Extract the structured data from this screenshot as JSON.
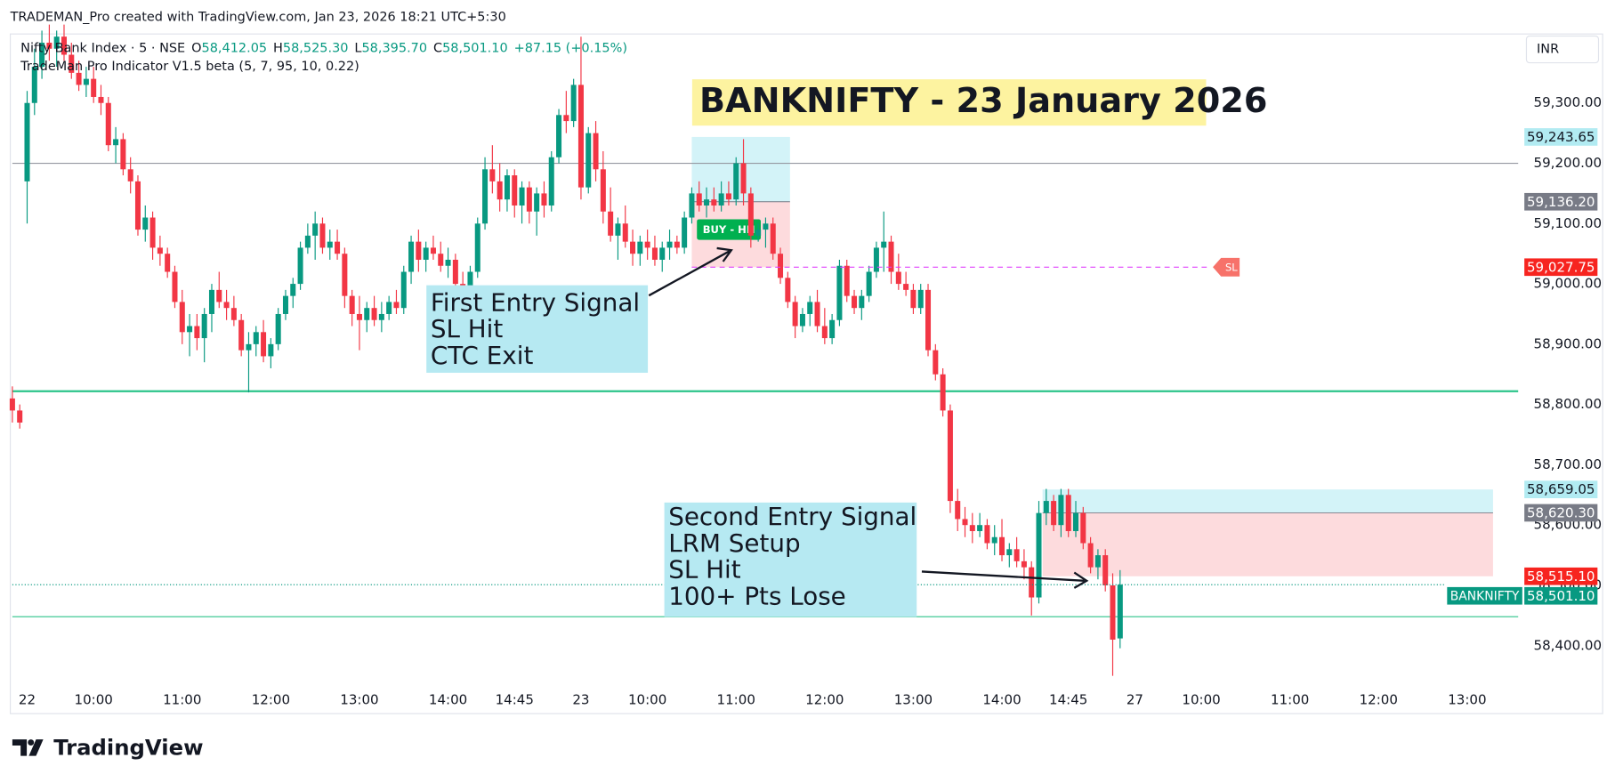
{
  "header": "TRADEMAN_Pro created with TradingView.com, Jan 23, 2026 18:21 UTC+5:30",
  "brand": "TradingView",
  "chart_data": {
    "type": "candlestick",
    "title": "BANKNIFTY - 23 January 2026",
    "currency": "INR",
    "legend": {
      "symbol": "Nifty Bank Index · 5 · NSE",
      "ohlc": [
        {
          "key": "O",
          "value": "58,412.05"
        },
        {
          "key": "H",
          "value": "58,525.30"
        },
        {
          "key": "L",
          "value": "58,395.70"
        },
        {
          "key": "C",
          "value": "58,501.10"
        }
      ],
      "change": "+87.15 (+0.15%)",
      "indicator": "TradeMan Pro Indicator V1.5 beta (5, 7, 95, 10, 0.22)"
    },
    "up_color": "#089981",
    "down_color": "#f23645",
    "xlim": [
      0,
      200
    ],
    "ylim": [
      58330,
      59411
    ],
    "grid": false,
    "xticks": [
      {
        "value": 2,
        "label": "22"
      },
      {
        "value": 11,
        "label": "10:00"
      },
      {
        "value": 23,
        "label": "11:00"
      },
      {
        "value": 35,
        "label": "12:00"
      },
      {
        "value": 47,
        "label": "13:00"
      },
      {
        "value": 59,
        "label": "14:00"
      },
      {
        "value": 68,
        "label": "14:45"
      },
      {
        "value": 77,
        "label": "23"
      },
      {
        "value": 86,
        "label": "10:00"
      },
      {
        "value": 98,
        "label": "11:00"
      },
      {
        "value": 110,
        "label": "12:00"
      },
      {
        "value": 122,
        "label": "13:00"
      },
      {
        "value": 134,
        "label": "14:00"
      },
      {
        "value": 143,
        "label": "14:45"
      },
      {
        "value": 152,
        "label": "27"
      },
      {
        "value": 161,
        "label": "10:00"
      },
      {
        "value": 173,
        "label": "11:00"
      },
      {
        "value": 185,
        "label": "12:00"
      },
      {
        "value": 197,
        "label": "13:00"
      }
    ],
    "yticks": [
      {
        "value": 58400,
        "label": "58,400.00"
      },
      {
        "value": 58500,
        "label": "58,500.00"
      },
      {
        "value": 58600,
        "label": "58,600.00"
      },
      {
        "value": 58700,
        "label": "58,700.00"
      },
      {
        "value": 58800,
        "label": "58,800.00"
      },
      {
        "value": 58900,
        "label": "58,900.00"
      },
      {
        "value": 59000,
        "label": "59,000.00"
      },
      {
        "value": 59100,
        "label": "59,100.00"
      },
      {
        "value": 59200,
        "label": "59,200.00"
      },
      {
        "value": 59300,
        "label": "59,300.00"
      }
    ],
    "ohlc": [
      [
        58810,
        58830,
        58770,
        58790
      ],
      [
        58790,
        58800,
        58760,
        58770
      ],
      [
        59170,
        59320,
        59100,
        59300
      ],
      [
        59300,
        59390,
        59280,
        59360
      ],
      [
        59360,
        59420,
        59340,
        59400
      ],
      [
        59400,
        59430,
        59370,
        59390
      ],
      [
        59390,
        59420,
        59360,
        59410
      ],
      [
        59410,
        59430,
        59370,
        59380
      ],
      [
        59380,
        59400,
        59340,
        59350
      ],
      [
        59350,
        59370,
        59320,
        59330
      ],
      [
        59330,
        59360,
        59310,
        59340
      ],
      [
        59340,
        59360,
        59300,
        59310
      ],
      [
        59310,
        59330,
        59280,
        59300
      ],
      [
        59300,
        59310,
        59220,
        59230
      ],
      [
        59230,
        59260,
        59200,
        59240
      ],
      [
        59240,
        59250,
        59180,
        59190
      ],
      [
        59190,
        59210,
        59150,
        59170
      ],
      [
        59170,
        59180,
        59080,
        59090
      ],
      [
        59090,
        59130,
        59070,
        59110
      ],
      [
        59110,
        59120,
        59040,
        59060
      ],
      [
        59060,
        59080,
        59030,
        59050
      ],
      [
        59050,
        59060,
        59010,
        59020
      ],
      [
        59020,
        59030,
        58960,
        58970
      ],
      [
        58970,
        58990,
        58900,
        58920
      ],
      [
        58920,
        58950,
        58880,
        58930
      ],
      [
        58930,
        58950,
        58890,
        58910
      ],
      [
        58910,
        58960,
        58870,
        58950
      ],
      [
        58950,
        59000,
        58920,
        58990
      ],
      [
        58990,
        59020,
        58960,
        58970
      ],
      [
        58970,
        58990,
        58940,
        58960
      ],
      [
        58960,
        58980,
        58930,
        58940
      ],
      [
        58940,
        58950,
        58880,
        58890
      ],
      [
        58890,
        58920,
        58820,
        58900
      ],
      [
        58900,
        58930,
        58880,
        58920
      ],
      [
        58920,
        58940,
        58870,
        58880
      ],
      [
        58880,
        58910,
        58860,
        58900
      ],
      [
        58900,
        58960,
        58890,
        58950
      ],
      [
        58950,
        58990,
        58940,
        58980
      ],
      [
        58980,
        59010,
        58960,
        59000
      ],
      [
        59000,
        59070,
        58990,
        59060
      ],
      [
        59060,
        59100,
        59050,
        59080
      ],
      [
        59080,
        59120,
        59040,
        59100
      ],
      [
        59100,
        59110,
        59050,
        59060
      ],
      [
        59060,
        59090,
        59040,
        59070
      ],
      [
        59070,
        59090,
        59040,
        59050
      ],
      [
        59050,
        59060,
        58960,
        58980
      ],
      [
        58980,
        58990,
        58930,
        58950
      ],
      [
        58950,
        58980,
        58890,
        58940
      ],
      [
        58940,
        58970,
        58920,
        58960
      ],
      [
        58960,
        58980,
        58930,
        58940
      ],
      [
        58940,
        58970,
        58920,
        58950
      ],
      [
        58950,
        58980,
        58940,
        58970
      ],
      [
        58970,
        58990,
        58950,
        58960
      ],
      [
        58960,
        59030,
        58950,
        59020
      ],
      [
        59020,
        59080,
        59000,
        59070
      ],
      [
        59070,
        59090,
        59020,
        59040
      ],
      [
        59040,
        59070,
        59020,
        59060
      ],
      [
        59060,
        59080,
        59040,
        59050
      ],
      [
        59050,
        59070,
        59020,
        59030
      ],
      [
        59030,
        59060,
        59010,
        59040
      ],
      [
        59040,
        59050,
        58990,
        59000
      ],
      [
        59000,
        59020,
        58970,
        58990
      ],
      [
        58990,
        59030,
        58980,
        59020
      ],
      [
        59020,
        59110,
        59010,
        59100
      ],
      [
        59100,
        59210,
        59090,
        59190
      ],
      [
        59190,
        59230,
        59150,
        59170
      ],
      [
        59170,
        59200,
        59120,
        59140
      ],
      [
        59140,
        59190,
        59120,
        59180
      ],
      [
        59180,
        59190,
        59110,
        59130
      ],
      [
        59130,
        59170,
        59100,
        59160
      ],
      [
        59160,
        59170,
        59100,
        59120
      ],
      [
        59120,
        59160,
        59080,
        59150
      ],
      [
        59150,
        59170,
        59110,
        59130
      ],
      [
        59130,
        59220,
        59120,
        59210
      ],
      [
        59210,
        59290,
        59200,
        59280
      ],
      [
        59280,
        59320,
        59250,
        59270
      ],
      [
        59270,
        59340,
        59260,
        59330
      ],
      [
        59330,
        59410,
        59140,
        59160
      ],
      [
        59160,
        59260,
        59150,
        59250
      ],
      [
        59250,
        59270,
        59170,
        59190
      ],
      [
        59190,
        59220,
        59100,
        59120
      ],
      [
        59120,
        59160,
        59070,
        59080
      ],
      [
        59080,
        59110,
        59040,
        59100
      ],
      [
        59100,
        59130,
        59060,
        59070
      ],
      [
        59070,
        59090,
        59030,
        59050
      ],
      [
        59050,
        59080,
        59030,
        59070
      ],
      [
        59070,
        59090,
        59040,
        59060
      ],
      [
        59060,
        59080,
        59030,
        59040
      ],
      [
        59040,
        59070,
        59020,
        59060
      ],
      [
        59060,
        59090,
        59040,
        59070
      ],
      [
        59070,
        59080,
        59050,
        59060
      ],
      [
        59060,
        59120,
        59050,
        59110
      ],
      [
        59110,
        59160,
        59100,
        59150
      ],
      [
        59150,
        59170,
        59120,
        59130
      ],
      [
        59130,
        59160,
        59110,
        59140
      ],
      [
        59140,
        59160,
        59120,
        59130
      ],
      [
        59130,
        59170,
        59120,
        59150
      ],
      [
        59150,
        59170,
        59130,
        59140
      ],
      [
        59140,
        59210,
        59130,
        59200
      ],
      [
        59200,
        59240,
        59130,
        59150
      ],
      [
        59150,
        59160,
        59060,
        59080
      ],
      [
        59080,
        59100,
        59070,
        59090
      ],
      [
        59090,
        59110,
        59060,
        59100
      ],
      [
        59100,
        59110,
        59040,
        59050
      ],
      [
        59050,
        59060,
        59000,
        59010
      ],
      [
        59010,
        59020,
        58960,
        58970
      ],
      [
        58970,
        58980,
        58910,
        58930
      ],
      [
        58930,
        58960,
        58920,
        58950
      ],
      [
        58950,
        58980,
        58930,
        58970
      ],
      [
        58970,
        58990,
        58920,
        58930
      ],
      [
        58930,
        58960,
        58900,
        58910
      ],
      [
        58910,
        58950,
        58900,
        58940
      ],
      [
        58940,
        59040,
        58930,
        59030
      ],
      [
        59030,
        59040,
        58970,
        58980
      ],
      [
        58980,
        58990,
        58950,
        58960
      ],
      [
        58960,
        58990,
        58940,
        58980
      ],
      [
        58980,
        59030,
        58970,
        59020
      ],
      [
        59020,
        59070,
        59010,
        59060
      ],
      [
        59060,
        59120,
        59020,
        59070
      ],
      [
        59070,
        59080,
        59000,
        59020
      ],
      [
        59020,
        59050,
        58990,
        59000
      ],
      [
        59000,
        59020,
        58980,
        58990
      ],
      [
        58990,
        59000,
        58950,
        58960
      ],
      [
        58960,
        59000,
        58950,
        58990
      ],
      [
        58990,
        59000,
        58880,
        58890
      ],
      [
        58890,
        58900,
        58840,
        58850
      ],
      [
        58850,
        58860,
        58780,
        58790
      ],
      [
        58790,
        58800,
        58620,
        58640
      ],
      [
        58640,
        58660,
        58590,
        58610
      ],
      [
        58610,
        58630,
        58580,
        58600
      ],
      [
        58600,
        58620,
        58570,
        58590
      ],
      [
        58590,
        58620,
        58580,
        58600
      ],
      [
        58600,
        58610,
        58560,
        58570
      ],
      [
        58570,
        58600,
        58550,
        58580
      ],
      [
        58580,
        58610,
        58540,
        58550
      ],
      [
        58550,
        58570,
        58530,
        58560
      ],
      [
        58560,
        58580,
        58530,
        58540
      ],
      [
        58540,
        58560,
        58510,
        58530
      ],
      [
        58530,
        58540,
        58450,
        58480
      ],
      [
        58480,
        58640,
        58470,
        58620
      ],
      [
        58620,
        58660,
        58600,
        58640
      ],
      [
        58640,
        58650,
        58590,
        58600
      ],
      [
        58600,
        58660,
        58580,
        58650
      ],
      [
        58650,
        58660,
        58580,
        58590
      ],
      [
        58590,
        58640,
        58580,
        58620
      ],
      [
        58620,
        58630,
        58560,
        58570
      ],
      [
        58570,
        58580,
        58520,
        58530
      ],
      [
        58530,
        58560,
        58510,
        58550
      ],
      [
        58550,
        58560,
        58490,
        58500
      ],
      [
        58500,
        58520,
        58350,
        58410
      ],
      [
        58412.05,
        58525.3,
        58395.7,
        58501.1
      ]
    ],
    "hlines": [
      {
        "value": 59200,
        "color": "#9598a1",
        "width": 1
      },
      {
        "value": 58822,
        "color": "#2bc48a",
        "width": 2
      },
      {
        "value": 58448,
        "color": "#2bc48a",
        "width": 1
      }
    ],
    "zones": [
      {
        "start": 92,
        "end": 105.3,
        "target": 59243.65,
        "entry": 59136.2,
        "stop": 59027.75,
        "signal": "BUY - HN"
      },
      {
        "start": 139.5,
        "end": 200.5,
        "target": 58659.05,
        "entry": 58620.3,
        "stop": 58515.1
      }
    ],
    "levels": [
      {
        "value": 59243.65,
        "label": "59,243.65",
        "color": "#b2ebf2",
        "text_color": "#131722"
      },
      {
        "value": 59136.2,
        "label": "59,136.20",
        "color": "#787b86",
        "text_color": "#ffffff"
      },
      {
        "value": 59027.75,
        "label": "59,027.75",
        "color": "#f7241f",
        "text_color": "#ffffff",
        "line": "dashed",
        "line_color": "#e040fb",
        "line_start": 92,
        "line_end": 162,
        "marker": "SL"
      },
      {
        "value": 58659.05,
        "label": "58,659.05",
        "color": "#b2ebf2",
        "text_color": "#131722"
      },
      {
        "value": 58620.3,
        "label": "58,620.30",
        "color": "#787b86",
        "text_color": "#ffffff"
      },
      {
        "value": 58515.1,
        "label": "58,515.10",
        "color": "#f7241f",
        "text_color": "#ffffff"
      },
      {
        "value": 58501.1,
        "label": "58,501.10",
        "color": "#089981",
        "text_color": "#ffffff",
        "line": "dotted",
        "line_color": "#089981",
        "tag": "BANKNIFTY"
      }
    ],
    "annotations": [
      {
        "lines": [
          "First Entry Signal",
          "SL Hit",
          "CTC Exit"
        ]
      },
      {
        "lines": [
          "Second Entry Signal",
          "LRM Setup",
          "SL Hit",
          "100+ Pts Lose"
        ]
      }
    ]
  }
}
